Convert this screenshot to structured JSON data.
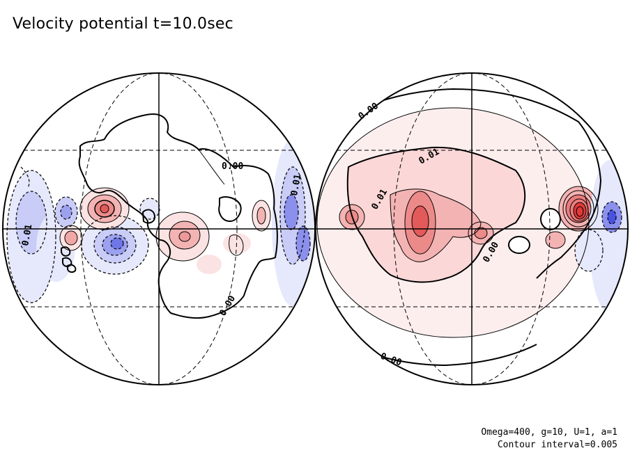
{
  "title": "Velocity potential t=10.0sec",
  "params": "Omega=400, g=10, U=1, a=1",
  "contour_interval": "Contour interval=0.005",
  "contour_labels": [
    "0.00",
    "0.01",
    "0.00",
    "0.01",
    "0.00",
    "0.00",
    "0.01",
    "0.01",
    "0.00"
  ],
  "colors": {
    "positive_light": "#fbe3e3",
    "positive_mid": "#f4b3b3",
    "positive_strong": "#ec7c7c",
    "positive_max": "#e04848",
    "negative_light": "#e3e5fb",
    "negative_mid": "#b3b8f3",
    "negative_strong": "#7c82ec",
    "negative_max": "#4a52e0",
    "line": "#000000"
  }
}
